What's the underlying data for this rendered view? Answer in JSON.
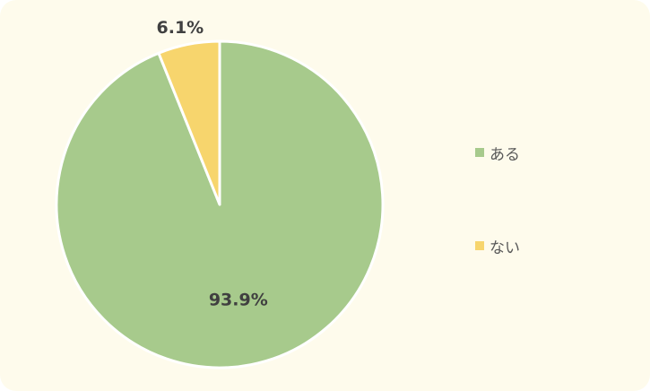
{
  "chart_data": {
    "type": "pie",
    "categories": [
      "ある",
      "ない"
    ],
    "values": [
      93.9,
      6.1
    ],
    "data_labels": [
      "93.9%",
      "6.1%"
    ],
    "colors": [
      "#a7ca8c",
      "#f7d56d"
    ],
    "title": "",
    "legend_position": "right"
  },
  "legend": {
    "items": [
      {
        "label": "ある",
        "color": "#a7ca8c"
      },
      {
        "label": "ない",
        "color": "#f7d56d"
      }
    ]
  },
  "colors": {
    "background": "#fefbec",
    "text": "#404040"
  }
}
